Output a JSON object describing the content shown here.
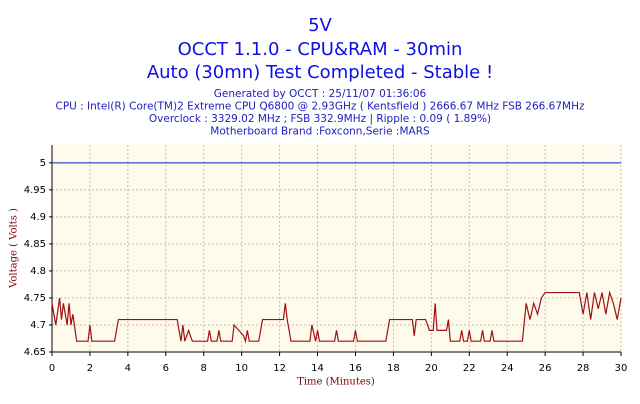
{
  "chart_data": {
    "type": "line",
    "title": "5V",
    "subtitle": "OCCT 1.1.0 - CPU&RAM - 30min",
    "status": "Auto (30mn) Test Completed - Stable !",
    "info_lines": [
      "Generated by OCCT : 25/11/07 01:36:06",
      "CPU : Intel(R) Core(TM)2 Extreme CPU Q6800  @ 2.93GHz ( Kentsfield ) 2666.67 MHz FSB 266.67MHz",
      "Overclock : 3329.02 MHz ; FSB 332.9MHz | Ripple : 0.09 ( 1.89%)",
      "Motherboard Brand :Foxconn,Serie :MARS"
    ],
    "x_label": "Time (Minutes)",
    "y_label": "Voltage ( Volts )",
    "xlim": [
      0,
      30
    ],
    "xticks": [
      0,
      2,
      4,
      6,
      8,
      10,
      12,
      14,
      16,
      18,
      20,
      22,
      24,
      26,
      28,
      30
    ],
    "ylim": [
      4.65,
      5.033
    ],
    "yticks": [
      4.65,
      4.7,
      4.75,
      4.8,
      4.85,
      4.9,
      4.95,
      5
    ],
    "grid": true,
    "series": [
      {
        "color": "#3050d0",
        "x": [
          0,
          30
        ],
        "values": [
          5,
          5
        ]
      },
      {
        "color": "#a01010",
        "x": [
          0,
          0.2,
          0.4,
          0.5,
          0.6,
          0.8,
          0.9,
          1.0,
          1.1,
          1.3,
          1.9,
          2.0,
          2.1,
          3.3,
          3.5,
          6.6,
          6.8,
          6.9,
          7.0,
          7.2,
          7.4,
          8.2,
          8.3,
          8.4,
          8.7,
          8.8,
          8.9,
          9.5,
          9.6,
          10.1,
          10.2,
          10.3,
          10.4,
          10.9,
          11.1,
          12.2,
          12.3,
          12.4,
          12.6,
          13.6,
          13.7,
          13.9,
          14.0,
          14.1,
          14.9,
          15.0,
          15.1,
          15.9,
          16.0,
          16.1,
          17.6,
          17.8,
          19.0,
          19.1,
          19.2,
          19.7,
          19.9,
          20.1,
          20.2,
          20.3,
          20.8,
          20.9,
          21.0,
          21.5,
          21.6,
          21.7,
          21.9,
          22.0,
          22.1,
          22.6,
          22.7,
          22.8,
          23.1,
          23.2,
          23.3,
          24.8,
          25.0,
          25.2,
          25.4,
          25.6,
          25.8,
          26.0,
          27.8,
          28.0,
          28.2,
          28.4,
          28.6,
          28.8,
          29.0,
          29.2,
          29.4,
          29.6,
          29.8,
          30
        ],
        "values": [
          4.74,
          4.7,
          4.75,
          4.71,
          4.74,
          4.7,
          4.74,
          4.7,
          4.72,
          4.67,
          4.67,
          4.7,
          4.67,
          4.67,
          4.71,
          4.71,
          4.67,
          4.7,
          4.67,
          4.69,
          4.67,
          4.67,
          4.69,
          4.67,
          4.67,
          4.69,
          4.67,
          4.67,
          4.7,
          4.68,
          4.67,
          4.69,
          4.67,
          4.67,
          4.71,
          4.71,
          4.74,
          4.71,
          4.67,
          4.67,
          4.7,
          4.67,
          4.69,
          4.67,
          4.67,
          4.69,
          4.67,
          4.67,
          4.69,
          4.67,
          4.67,
          4.71,
          4.71,
          4.68,
          4.71,
          4.71,
          4.69,
          4.69,
          4.74,
          4.69,
          4.69,
          4.71,
          4.67,
          4.67,
          4.69,
          4.67,
          4.67,
          4.69,
          4.67,
          4.67,
          4.69,
          4.67,
          4.67,
          4.69,
          4.67,
          4.67,
          4.74,
          4.71,
          4.74,
          4.72,
          4.75,
          4.76,
          4.76,
          4.72,
          4.76,
          4.71,
          4.76,
          4.73,
          4.76,
          4.72,
          4.76,
          4.74,
          4.71,
          4.75
        ]
      }
    ]
  }
}
